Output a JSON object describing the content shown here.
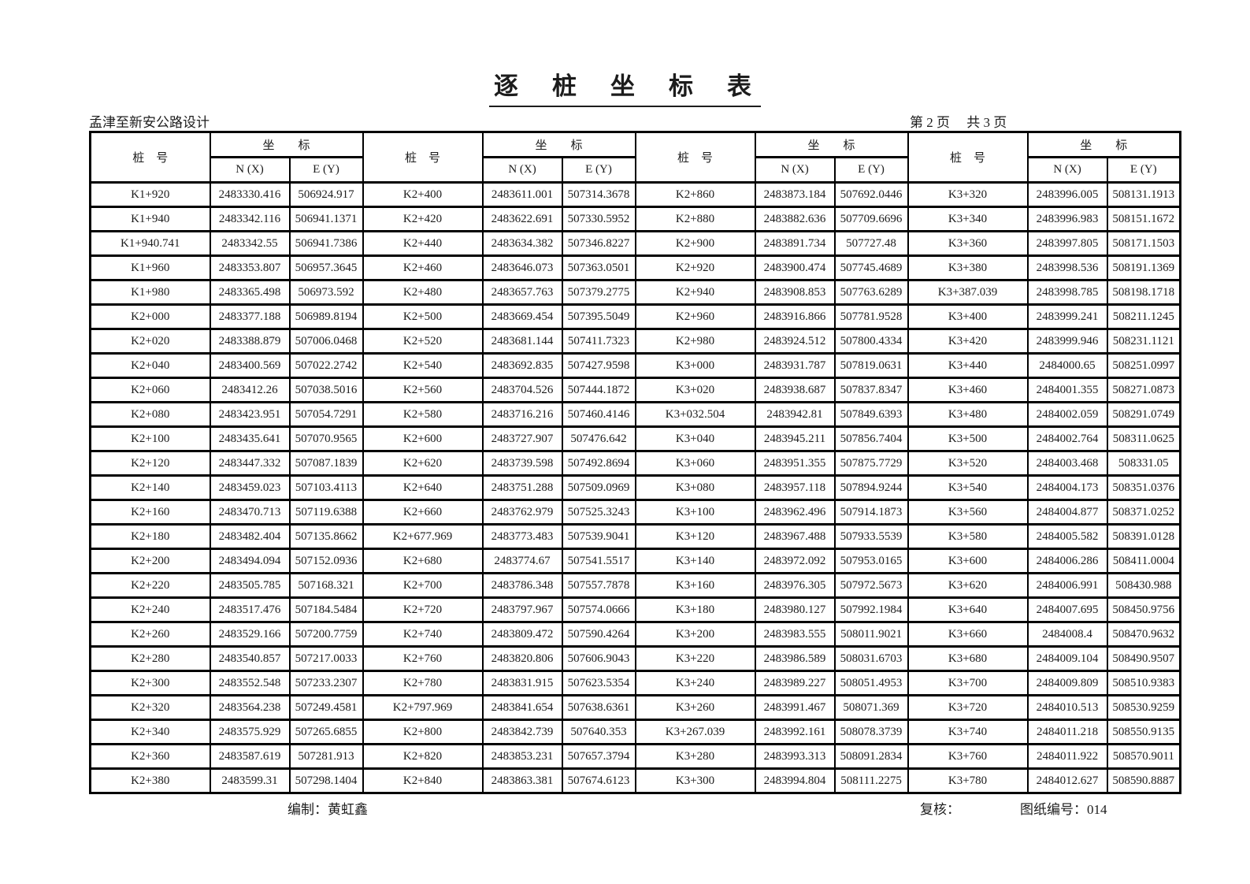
{
  "page": {
    "title": "逐　桩　坐　标　表",
    "project": "孟津至新安公路设计",
    "page_info": "第 2 页　 共 3 页",
    "footer": {
      "prepared": "编制：黄虹鑫",
      "checked": "复核：",
      "drawing_no": "图纸编号：014"
    }
  },
  "colors": {
    "background": "#ffffff",
    "text": "#1c1c1c",
    "line": "#000000"
  },
  "table": {
    "header": {
      "stake_label": "桩　号",
      "coord_label": "坐　　标",
      "n_label": "N (X)",
      "e_label": "E (Y)"
    },
    "groups": [
      {
        "rows": [
          [
            "K1+920",
            "2483330.416",
            "506924.917"
          ],
          [
            "K1+940",
            "2483342.116",
            "506941.1371"
          ],
          [
            "K1+940.741",
            "2483342.55",
            "506941.7386"
          ],
          [
            "K1+960",
            "2483353.807",
            "506957.3645"
          ],
          [
            "K1+980",
            "2483365.498",
            "506973.592"
          ],
          [
            "K2+000",
            "2483377.188",
            "506989.8194"
          ],
          [
            "K2+020",
            "2483388.879",
            "507006.0468"
          ],
          [
            "K2+040",
            "2483400.569",
            "507022.2742"
          ],
          [
            "K2+060",
            "2483412.26",
            "507038.5016"
          ],
          [
            "K2+080",
            "2483423.951",
            "507054.7291"
          ],
          [
            "K2+100",
            "2483435.641",
            "507070.9565"
          ],
          [
            "K2+120",
            "2483447.332",
            "507087.1839"
          ],
          [
            "K2+140",
            "2483459.023",
            "507103.4113"
          ],
          [
            "K2+160",
            "2483470.713",
            "507119.6388"
          ],
          [
            "K2+180",
            "2483482.404",
            "507135.8662"
          ],
          [
            "K2+200",
            "2483494.094",
            "507152.0936"
          ],
          [
            "K2+220",
            "2483505.785",
            "507168.321"
          ],
          [
            "K2+240",
            "2483517.476",
            "507184.5484"
          ],
          [
            "K2+260",
            "2483529.166",
            "507200.7759"
          ],
          [
            "K2+280",
            "2483540.857",
            "507217.0033"
          ],
          [
            "K2+300",
            "2483552.548",
            "507233.2307"
          ],
          [
            "K2+320",
            "2483564.238",
            "507249.4581"
          ],
          [
            "K2+340",
            "2483575.929",
            "507265.6855"
          ],
          [
            "K2+360",
            "2483587.619",
            "507281.913"
          ],
          [
            "K2+380",
            "2483599.31",
            "507298.1404"
          ]
        ]
      },
      {
        "rows": [
          [
            "K2+400",
            "2483611.001",
            "507314.3678"
          ],
          [
            "K2+420",
            "2483622.691",
            "507330.5952"
          ],
          [
            "K2+440",
            "2483634.382",
            "507346.8227"
          ],
          [
            "K2+460",
            "2483646.073",
            "507363.0501"
          ],
          [
            "K2+480",
            "2483657.763",
            "507379.2775"
          ],
          [
            "K2+500",
            "2483669.454",
            "507395.5049"
          ],
          [
            "K2+520",
            "2483681.144",
            "507411.7323"
          ],
          [
            "K2+540",
            "2483692.835",
            "507427.9598"
          ],
          [
            "K2+560",
            "2483704.526",
            "507444.1872"
          ],
          [
            "K2+580",
            "2483716.216",
            "507460.4146"
          ],
          [
            "K2+600",
            "2483727.907",
            "507476.642"
          ],
          [
            "K2+620",
            "2483739.598",
            "507492.8694"
          ],
          [
            "K2+640",
            "2483751.288",
            "507509.0969"
          ],
          [
            "K2+660",
            "2483762.979",
            "507525.3243"
          ],
          [
            "K2+677.969",
            "2483773.483",
            "507539.9041"
          ],
          [
            "K2+680",
            "2483774.67",
            "507541.5517"
          ],
          [
            "K2+700",
            "2483786.348",
            "507557.7878"
          ],
          [
            "K2+720",
            "2483797.967",
            "507574.0666"
          ],
          [
            "K2+740",
            "2483809.472",
            "507590.4264"
          ],
          [
            "K2+760",
            "2483820.806",
            "507606.9043"
          ],
          [
            "K2+780",
            "2483831.915",
            "507623.5354"
          ],
          [
            "K2+797.969",
            "2483841.654",
            "507638.6361"
          ],
          [
            "K2+800",
            "2483842.739",
            "507640.353"
          ],
          [
            "K2+820",
            "2483853.231",
            "507657.3794"
          ],
          [
            "K2+840",
            "2483863.381",
            "507674.6123"
          ]
        ]
      },
      {
        "rows": [
          [
            "K2+860",
            "2483873.184",
            "507692.0446"
          ],
          [
            "K2+880",
            "2483882.636",
            "507709.6696"
          ],
          [
            "K2+900",
            "2483891.734",
            "507727.48"
          ],
          [
            "K2+920",
            "2483900.474",
            "507745.4689"
          ],
          [
            "K2+940",
            "2483908.853",
            "507763.6289"
          ],
          [
            "K2+960",
            "2483916.866",
            "507781.9528"
          ],
          [
            "K2+980",
            "2483924.512",
            "507800.4334"
          ],
          [
            "K3+000",
            "2483931.787",
            "507819.0631"
          ],
          [
            "K3+020",
            "2483938.687",
            "507837.8347"
          ],
          [
            "K3+032.504",
            "2483942.81",
            "507849.6393"
          ],
          [
            "K3+040",
            "2483945.211",
            "507856.7404"
          ],
          [
            "K3+060",
            "2483951.355",
            "507875.7729"
          ],
          [
            "K3+080",
            "2483957.118",
            "507894.9244"
          ],
          [
            "K3+100",
            "2483962.496",
            "507914.1873"
          ],
          [
            "K3+120",
            "2483967.488",
            "507933.5539"
          ],
          [
            "K3+140",
            "2483972.092",
            "507953.0165"
          ],
          [
            "K3+160",
            "2483976.305",
            "507972.5673"
          ],
          [
            "K3+180",
            "2483980.127",
            "507992.1984"
          ],
          [
            "K3+200",
            "2483983.555",
            "508011.9021"
          ],
          [
            "K3+220",
            "2483986.589",
            "508031.6703"
          ],
          [
            "K3+240",
            "2483989.227",
            "508051.4953"
          ],
          [
            "K3+260",
            "2483991.467",
            "508071.369"
          ],
          [
            "K3+267.039",
            "2483992.161",
            "508078.3739"
          ],
          [
            "K3+280",
            "2483993.313",
            "508091.2834"
          ],
          [
            "K3+300",
            "2483994.804",
            "508111.2275"
          ]
        ]
      },
      {
        "rows": [
          [
            "K3+320",
            "2483996.005",
            "508131.1913"
          ],
          [
            "K3+340",
            "2483996.983",
            "508151.1672"
          ],
          [
            "K3+360",
            "2483997.805",
            "508171.1503"
          ],
          [
            "K3+380",
            "2483998.536",
            "508191.1369"
          ],
          [
            "K3+387.039",
            "2483998.785",
            "508198.1718"
          ],
          [
            "K3+400",
            "2483999.241",
            "508211.1245"
          ],
          [
            "K3+420",
            "2483999.946",
            "508231.1121"
          ],
          [
            "K3+440",
            "2484000.65",
            "508251.0997"
          ],
          [
            "K3+460",
            "2484001.355",
            "508271.0873"
          ],
          [
            "K3+480",
            "2484002.059",
            "508291.0749"
          ],
          [
            "K3+500",
            "2484002.764",
            "508311.0625"
          ],
          [
            "K3+520",
            "2484003.468",
            "508331.05"
          ],
          [
            "K3+540",
            "2484004.173",
            "508351.0376"
          ],
          [
            "K3+560",
            "2484004.877",
            "508371.0252"
          ],
          [
            "K3+580",
            "2484005.582",
            "508391.0128"
          ],
          [
            "K3+600",
            "2484006.286",
            "508411.0004"
          ],
          [
            "K3+620",
            "2484006.991",
            "508430.988"
          ],
          [
            "K3+640",
            "2484007.695",
            "508450.9756"
          ],
          [
            "K3+660",
            "2484008.4",
            "508470.9632"
          ],
          [
            "K3+680",
            "2484009.104",
            "508490.9507"
          ],
          [
            "K3+700",
            "2484009.809",
            "508510.9383"
          ],
          [
            "K3+720",
            "2484010.513",
            "508530.9259"
          ],
          [
            "K3+740",
            "2484011.218",
            "508550.9135"
          ],
          [
            "K3+760",
            "2484011.922",
            "508570.9011"
          ],
          [
            "K3+780",
            "2484012.627",
            "508590.8887"
          ]
        ]
      }
    ]
  }
}
